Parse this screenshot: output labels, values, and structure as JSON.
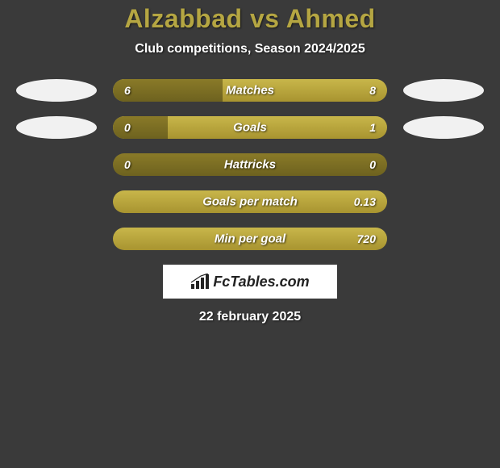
{
  "title": "Alzabbad vs Ahmed",
  "subtitle": "Club competitions, Season 2024/2025",
  "date": "22 february 2025",
  "logo_text": "FcTables.com",
  "colors": {
    "title_color": "#b5a642",
    "text_color": "#ffffff",
    "bar_light_top": "#c8b64a",
    "bar_light_bottom": "#a89430",
    "bar_dark_top": "#8a7a28",
    "bar_dark_bottom": "#6e621f",
    "background": "#3a3a3a",
    "oval_left": "#f1f1f1",
    "oval_right": "#f1f1f1",
    "logo_bg": "#ffffff"
  },
  "stats": [
    {
      "label": "Matches",
      "left_val": "6",
      "right_val": "8",
      "left_fill_pct": 40,
      "right_fill_pct": 0,
      "show_ovals": true
    },
    {
      "label": "Goals",
      "left_val": "0",
      "right_val": "1",
      "left_fill_pct": 20,
      "right_fill_pct": 0,
      "show_ovals": true
    },
    {
      "label": "Hattricks",
      "left_val": "0",
      "right_val": "0",
      "left_fill_pct": 100,
      "right_fill_pct": 0,
      "show_ovals": false
    },
    {
      "label": "Goals per match",
      "left_val": "",
      "right_val": "0.13",
      "left_fill_pct": 0,
      "right_fill_pct": 0,
      "show_ovals": false
    },
    {
      "label": "Min per goal",
      "left_val": "",
      "right_val": "720",
      "left_fill_pct": 0,
      "right_fill_pct": 0,
      "show_ovals": false
    }
  ]
}
